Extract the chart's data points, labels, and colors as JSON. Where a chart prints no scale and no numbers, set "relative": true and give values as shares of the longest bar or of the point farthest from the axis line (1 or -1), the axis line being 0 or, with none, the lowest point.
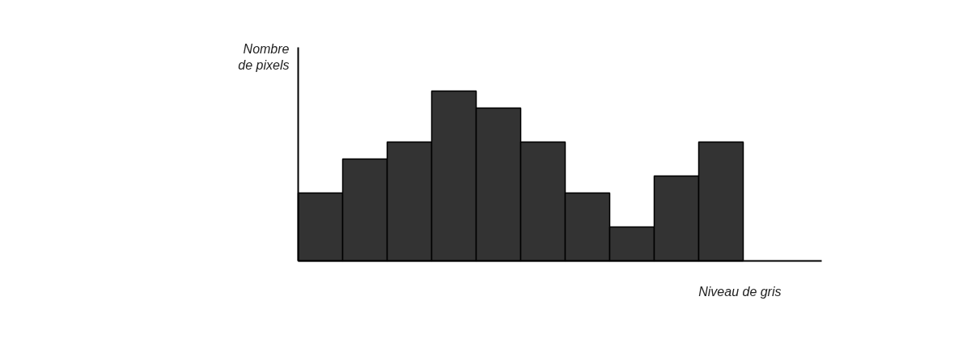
{
  "chart_data": {
    "type": "bar",
    "relative": true,
    "xlabel": "Niveau de gris",
    "ylabel": "Nombre\nde pixels",
    "categories": [
      null,
      null,
      null,
      null,
      null,
      null,
      null,
      null,
      null,
      null
    ],
    "values": [
      0.4,
      0.6,
      0.7,
      1,
      0.9,
      0.7,
      0.4,
      0.2,
      0.5,
      0.7
    ],
    "color": "#333333"
  }
}
